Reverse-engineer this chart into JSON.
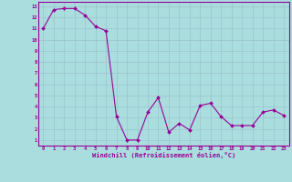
{
  "x": [
    0,
    1,
    2,
    3,
    4,
    5,
    6,
    7,
    8,
    9,
    10,
    11,
    12,
    13,
    14,
    15,
    16,
    17,
    18,
    19,
    20,
    21,
    22,
    23
  ],
  "y": [
    11.0,
    12.7,
    12.8,
    12.8,
    12.2,
    11.2,
    10.8,
    3.1,
    1.0,
    1.0,
    3.5,
    4.8,
    1.7,
    2.5,
    1.9,
    4.1,
    4.3,
    3.1,
    2.3,
    2.3,
    2.3,
    3.5,
    3.7,
    3.2
  ],
  "color": "#990099",
  "bg_color": "#aadddd",
  "grid_color": "#99bbcc",
  "xlabel": "Windchill (Refroidissement éolien,°C)",
  "ylim_min": 0.5,
  "ylim_max": 13.4,
  "xlim_min": -0.5,
  "xlim_max": 23.5,
  "yticks": [
    1,
    2,
    3,
    4,
    5,
    6,
    7,
    8,
    9,
    10,
    11,
    12,
    13
  ],
  "xticks": [
    0,
    1,
    2,
    3,
    4,
    5,
    6,
    7,
    8,
    9,
    10,
    11,
    12,
    13,
    14,
    15,
    16,
    17,
    18,
    19,
    20,
    21,
    22,
    23
  ],
  "xlabel_fontsize": 5.0,
  "tick_fontsize": 4.0,
  "line_width": 0.8,
  "marker_size": 2.0
}
